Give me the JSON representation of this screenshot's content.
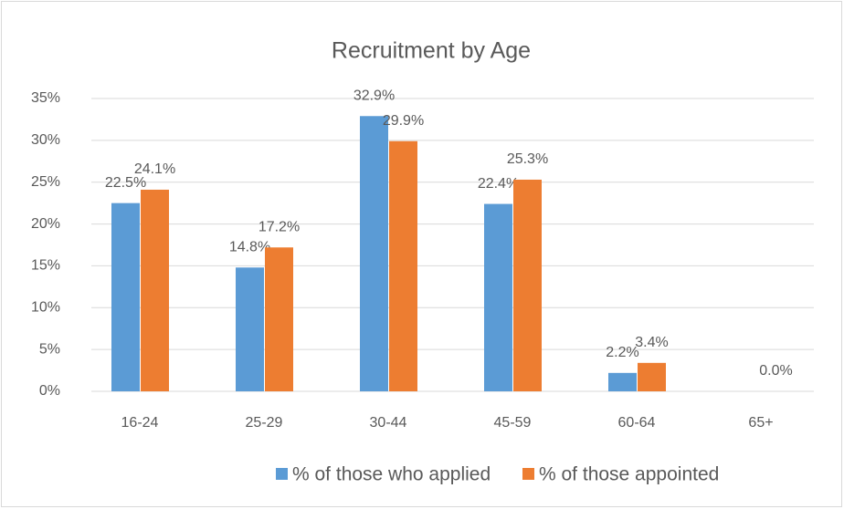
{
  "chart_data": {
    "type": "bar",
    "title": "Recruitment by Age",
    "categories": [
      "16-24",
      "25-29",
      "30-44",
      "45-59",
      "60-64",
      "65+"
    ],
    "series": [
      {
        "name": "% of those who applied",
        "color": "#5b9bd5",
        "values": [
          22.5,
          14.8,
          32.9,
          22.4,
          2.2,
          0.0
        ],
        "value_labels": [
          "22.5%",
          "14.8%",
          "32.9%",
          "22.4%",
          "2.2%",
          null
        ]
      },
      {
        "name": "% of those appointed",
        "color": "#ed7d31",
        "values": [
          24.1,
          17.2,
          29.9,
          25.3,
          3.4,
          0.0
        ],
        "value_labels": [
          "24.1%",
          "17.2%",
          "29.9%",
          "25.3%",
          "3.4%",
          "0.0%"
        ]
      }
    ],
    "ylim": [
      0,
      35
    ],
    "yticks": [
      {
        "value": 0,
        "label": "0%"
      },
      {
        "value": 5,
        "label": "5%"
      },
      {
        "value": 10,
        "label": "10%"
      },
      {
        "value": 15,
        "label": "15%"
      },
      {
        "value": 20,
        "label": "20%"
      },
      {
        "value": 25,
        "label": "25%"
      },
      {
        "value": 30,
        "label": "30%"
      },
      {
        "value": 35,
        "label": "35%"
      }
    ],
    "grid": true,
    "legend": "bottom"
  }
}
